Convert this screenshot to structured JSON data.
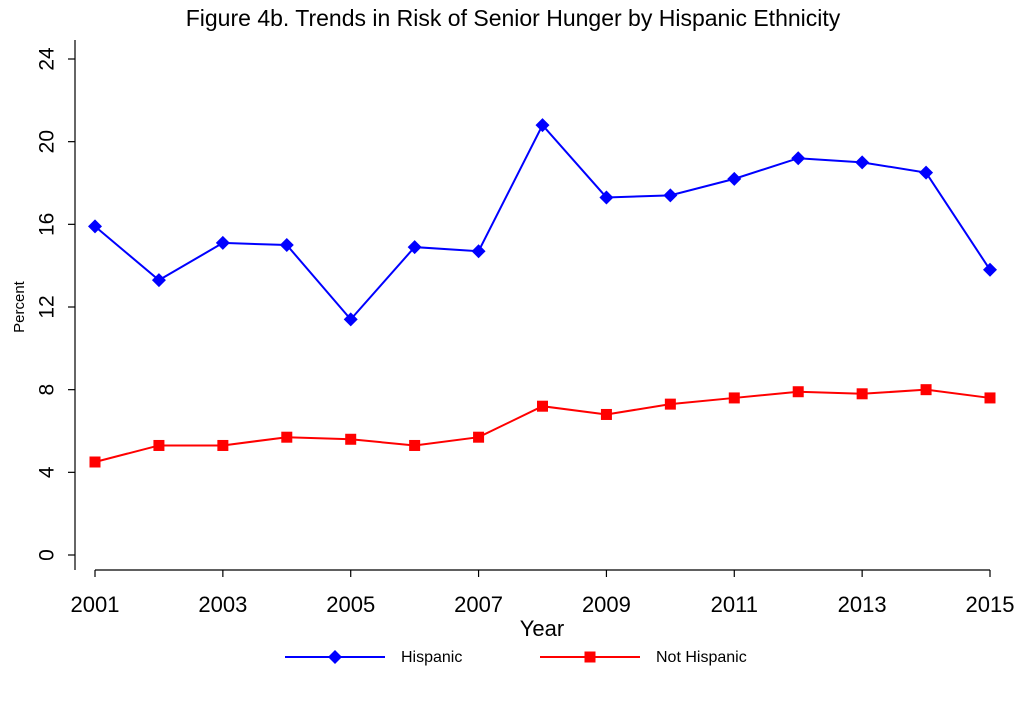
{
  "chart_data": {
    "type": "line",
    "title": "Figure 4b.  Trends in Risk of Senior Hunger by Hispanic Ethnicity",
    "x_label": "Year",
    "y_label": "Percent",
    "x": [
      2001,
      2002,
      2003,
      2004,
      2005,
      2006,
      2007,
      2008,
      2009,
      2010,
      2011,
      2012,
      2013,
      2014,
      2015
    ],
    "series": [
      {
        "name": "Hispanic",
        "color": "#0000ff",
        "marker": "diamond",
        "values": [
          15.9,
          13.3,
          15.1,
          15.0,
          11.4,
          14.9,
          14.7,
          20.8,
          17.3,
          17.4,
          18.2,
          19.2,
          19.0,
          18.5,
          13.8
        ]
      },
      {
        "name": "Not Hispanic",
        "color": "#ff0000",
        "marker": "square",
        "values": [
          4.5,
          5.3,
          5.3,
          5.7,
          5.6,
          5.3,
          5.7,
          7.2,
          6.8,
          7.3,
          7.6,
          7.9,
          7.8,
          8.0,
          7.6
        ]
      }
    ],
    "xlim": [
      2001,
      2015
    ],
    "xticks": [
      2001,
      2003,
      2005,
      2007,
      2009,
      2011,
      2013,
      2015
    ],
    "ylim": [
      0,
      24
    ],
    "yticks": [
      0,
      4,
      8,
      12,
      16,
      20,
      24
    ],
    "grid": false,
    "legend": "bottom"
  }
}
